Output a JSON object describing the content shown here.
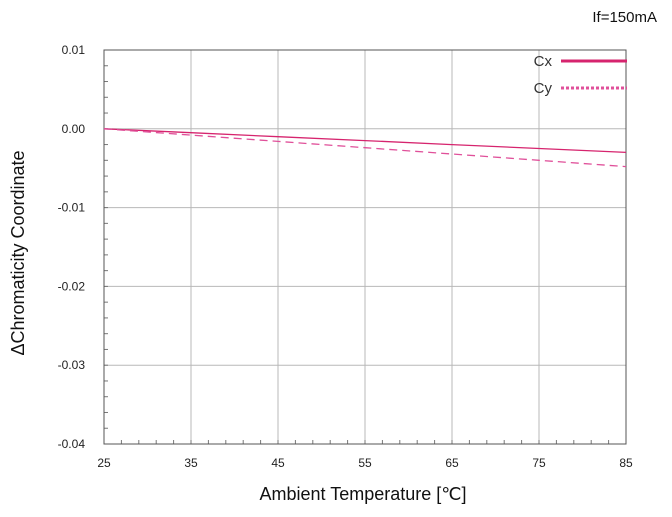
{
  "annotation": "If=150mA",
  "chart_data": {
    "type": "line",
    "xlabel": "Ambient Temperature [℃]",
    "ylabel": "ΔChromaticity Coordinate",
    "xlim": [
      25,
      85
    ],
    "ylim": [
      -0.04,
      0.01
    ],
    "x_ticks": [
      "25",
      "35",
      "45",
      "55",
      "65",
      "75",
      "85"
    ],
    "y_ticks": [
      "0.01",
      "0.00",
      "-0.01",
      "-0.02",
      "-0.03",
      "-0.04"
    ],
    "grid": true,
    "legend_position": "top-right",
    "series": [
      {
        "name": "Cx",
        "color": "#d6246e",
        "style": "solid",
        "x": [
          25,
          35,
          45,
          55,
          65,
          75,
          85
        ],
        "y": [
          0.0,
          -0.0005,
          -0.001,
          -0.0015,
          -0.002,
          -0.0025,
          -0.003
        ]
      },
      {
        "name": "Cy",
        "color": "#e0509a",
        "style": "dashed",
        "x": [
          25,
          35,
          45,
          55,
          65,
          75,
          85
        ],
        "y": [
          0.0,
          -0.0008,
          -0.0016,
          -0.0024,
          -0.0032,
          -0.004,
          -0.0048
        ]
      }
    ]
  }
}
